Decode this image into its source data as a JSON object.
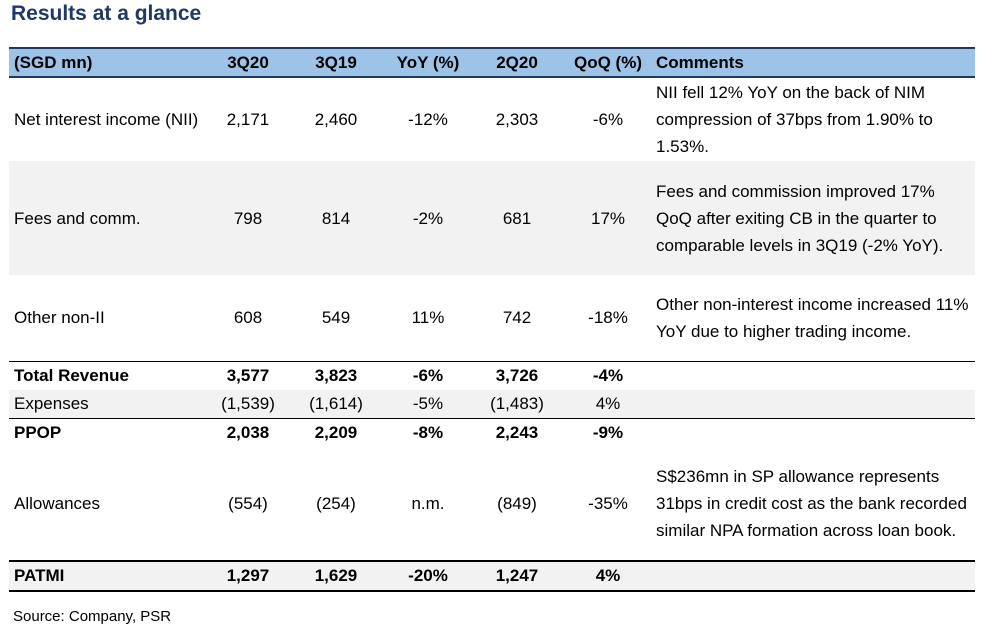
{
  "title": "Results at a glance",
  "columns": [
    "(SGD mn)",
    "3Q20",
    "3Q19",
    "YoY (%)",
    "2Q20",
    "QoQ (%)",
    "Comments"
  ],
  "rows": [
    {
      "label": "Net interest income (NII)",
      "q320": "2,171",
      "q319": "2,460",
      "yoy": "-12%",
      "q220": "2,303",
      "qoq": "-6%",
      "comment": "NII fell 12% YoY on the back of NIM compression of 37bps from 1.90% to 1.53%."
    },
    {
      "label": "Fees and comm.",
      "q320": "798",
      "q319": "814",
      "yoy": "-2%",
      "q220": "681",
      "qoq": "17%",
      "comment": "Fees and commission improved 17% QoQ after exiting CB in the quarter to comparable levels in 3Q19 (-2% YoY)."
    },
    {
      "label": "Other non-II",
      "q320": "608",
      "q319": "549",
      "yoy": "11%",
      "q220": "742",
      "qoq": "-18%",
      "comment": "Other non-interest income increased 11% YoY due to higher trading income."
    },
    {
      "label": "Total Revenue",
      "q320": "3,577",
      "q319": "3,823",
      "yoy": "-6%",
      "q220": "3,726",
      "qoq": "-4%",
      "comment": ""
    },
    {
      "label": "Expenses",
      "q320": "(1,539)",
      "q319": "(1,614)",
      "yoy": "-5%",
      "q220": "(1,483)",
      "qoq": "4%",
      "comment": ""
    },
    {
      "label": "PPOP",
      "q320": "2,038",
      "q319": "2,209",
      "yoy": "-8%",
      "q220": "2,243",
      "qoq": "-9%",
      "comment": ""
    },
    {
      "label": "Allowances",
      "q320": "(554)",
      "q319": "(254)",
      "yoy": "n.m.",
      "q220": "(849)",
      "qoq": "-35%",
      "comment": "S$236mn in SP allowance represents 31bps in credit cost as the bank recorded similar NPA formation across loan book."
    },
    {
      "label": "PATMI",
      "q320": "1,297",
      "q319": "1,629",
      "yoy": "-20%",
      "q220": "1,247",
      "qoq": "4%",
      "comment": ""
    }
  ],
  "source": "Source: Company, PSR",
  "colors": {
    "header_bg": "#9dc3e6",
    "title": "#1f3864",
    "band": "#f2f2f2"
  }
}
